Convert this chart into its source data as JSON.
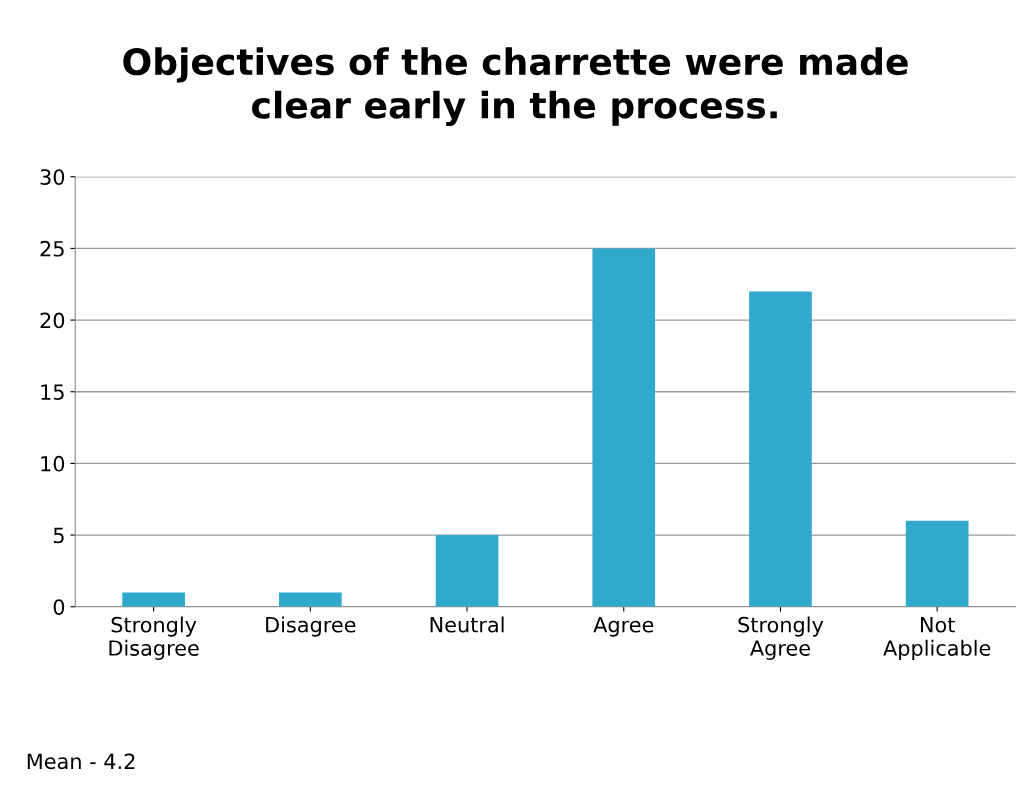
{
  "chart_data": {
    "type": "bar",
    "title": "Objectives of the charrette were made\nclear early in the process.",
    "categories": [
      "Strongly\nDisagree",
      "Disagree",
      "Neutral",
      "Agree",
      "Strongly\nAgree",
      "Not\nApplicable"
    ],
    "values": [
      1,
      1,
      5,
      25,
      22,
      6
    ],
    "color": "#31a9cc",
    "ylim": [
      0,
      30
    ],
    "yticks": [
      0,
      5,
      10,
      15,
      20,
      25,
      30
    ],
    "grid": "y",
    "legend": false,
    "annotations": [
      "Mean - 4.2"
    ]
  }
}
